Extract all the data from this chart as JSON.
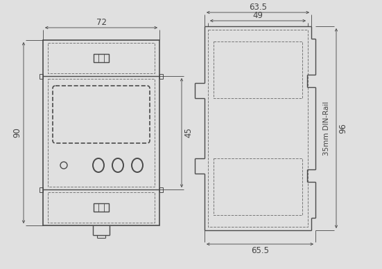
{
  "bg_color": "#e0e0e0",
  "line_color": "#4a4a4a",
  "dash_color": "#777777",
  "dim_color": "#444444",
  "figsize": [
    5.51,
    3.89
  ],
  "dpi": 100
}
